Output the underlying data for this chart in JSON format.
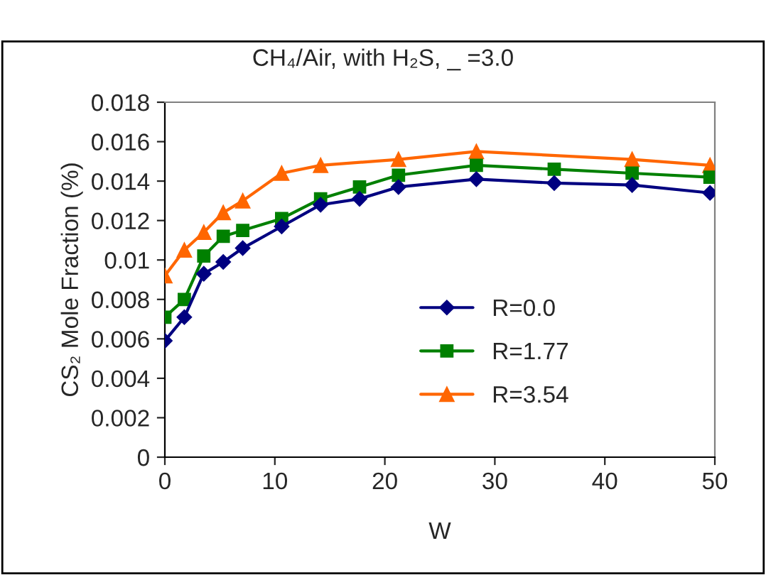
{
  "chart_data": {
    "type": "line",
    "title": "CH₄/Air, with H₂S, _ =3.0",
    "xlabel": "W",
    "ylabel": "CS₂ Mole Fraction (%)",
    "xlim": [
      0,
      50
    ],
    "xticks": [
      0,
      10,
      20,
      30,
      40,
      50
    ],
    "ylim": [
      0,
      0.018
    ],
    "yticks": [
      0,
      0.002,
      0.004,
      0.006,
      0.008,
      {
        "value": 0.01,
        "label": "0.01"
      },
      0.012,
      0.014,
      0.016,
      0.018
    ],
    "grid": false,
    "legend": "bottom",
    "series": [
      {
        "name": "R=0.0",
        "color": "#000080",
        "marker": "diamond",
        "x": [
          0,
          1.77,
          3.54,
          5.31,
          7.08,
          10.62,
          14.16,
          17.7,
          21.24,
          28.32,
          35.4,
          42.48,
          49.56
        ],
        "values": [
          0.0059,
          0.0071,
          0.0093,
          0.0099,
          0.0106,
          0.0117,
          0.0128,
          0.0131,
          0.0137,
          0.0141,
          0.0139,
          0.0138,
          0.0134
        ]
      },
      {
        "name": "R=1.77",
        "color": "#008000",
        "marker": "square",
        "x": [
          0,
          1.77,
          3.54,
          5.31,
          7.08,
          10.62,
          14.16,
          17.7,
          21.24,
          28.32,
          35.4,
          42.48,
          49.56
        ],
        "values": [
          0.0071,
          0.008,
          0.0102,
          0.0112,
          0.0115,
          0.0121,
          0.0131,
          0.0137,
          0.0143,
          0.0148,
          0.0146,
          0.0144,
          0.0142
        ]
      },
      {
        "name": "R=3.54",
        "color": "#ff6600",
        "marker": "triangle",
        "x": [
          0,
          1.77,
          3.54,
          5.31,
          7.08,
          10.62,
          14.16,
          21.24,
          28.32,
          42.48,
          49.56
        ],
        "values": [
          0.0092,
          0.0105,
          0.0114,
          0.0124,
          0.013,
          0.0144,
          0.0148,
          0.0151,
          0.0155,
          0.0151,
          0.0148
        ]
      }
    ]
  }
}
